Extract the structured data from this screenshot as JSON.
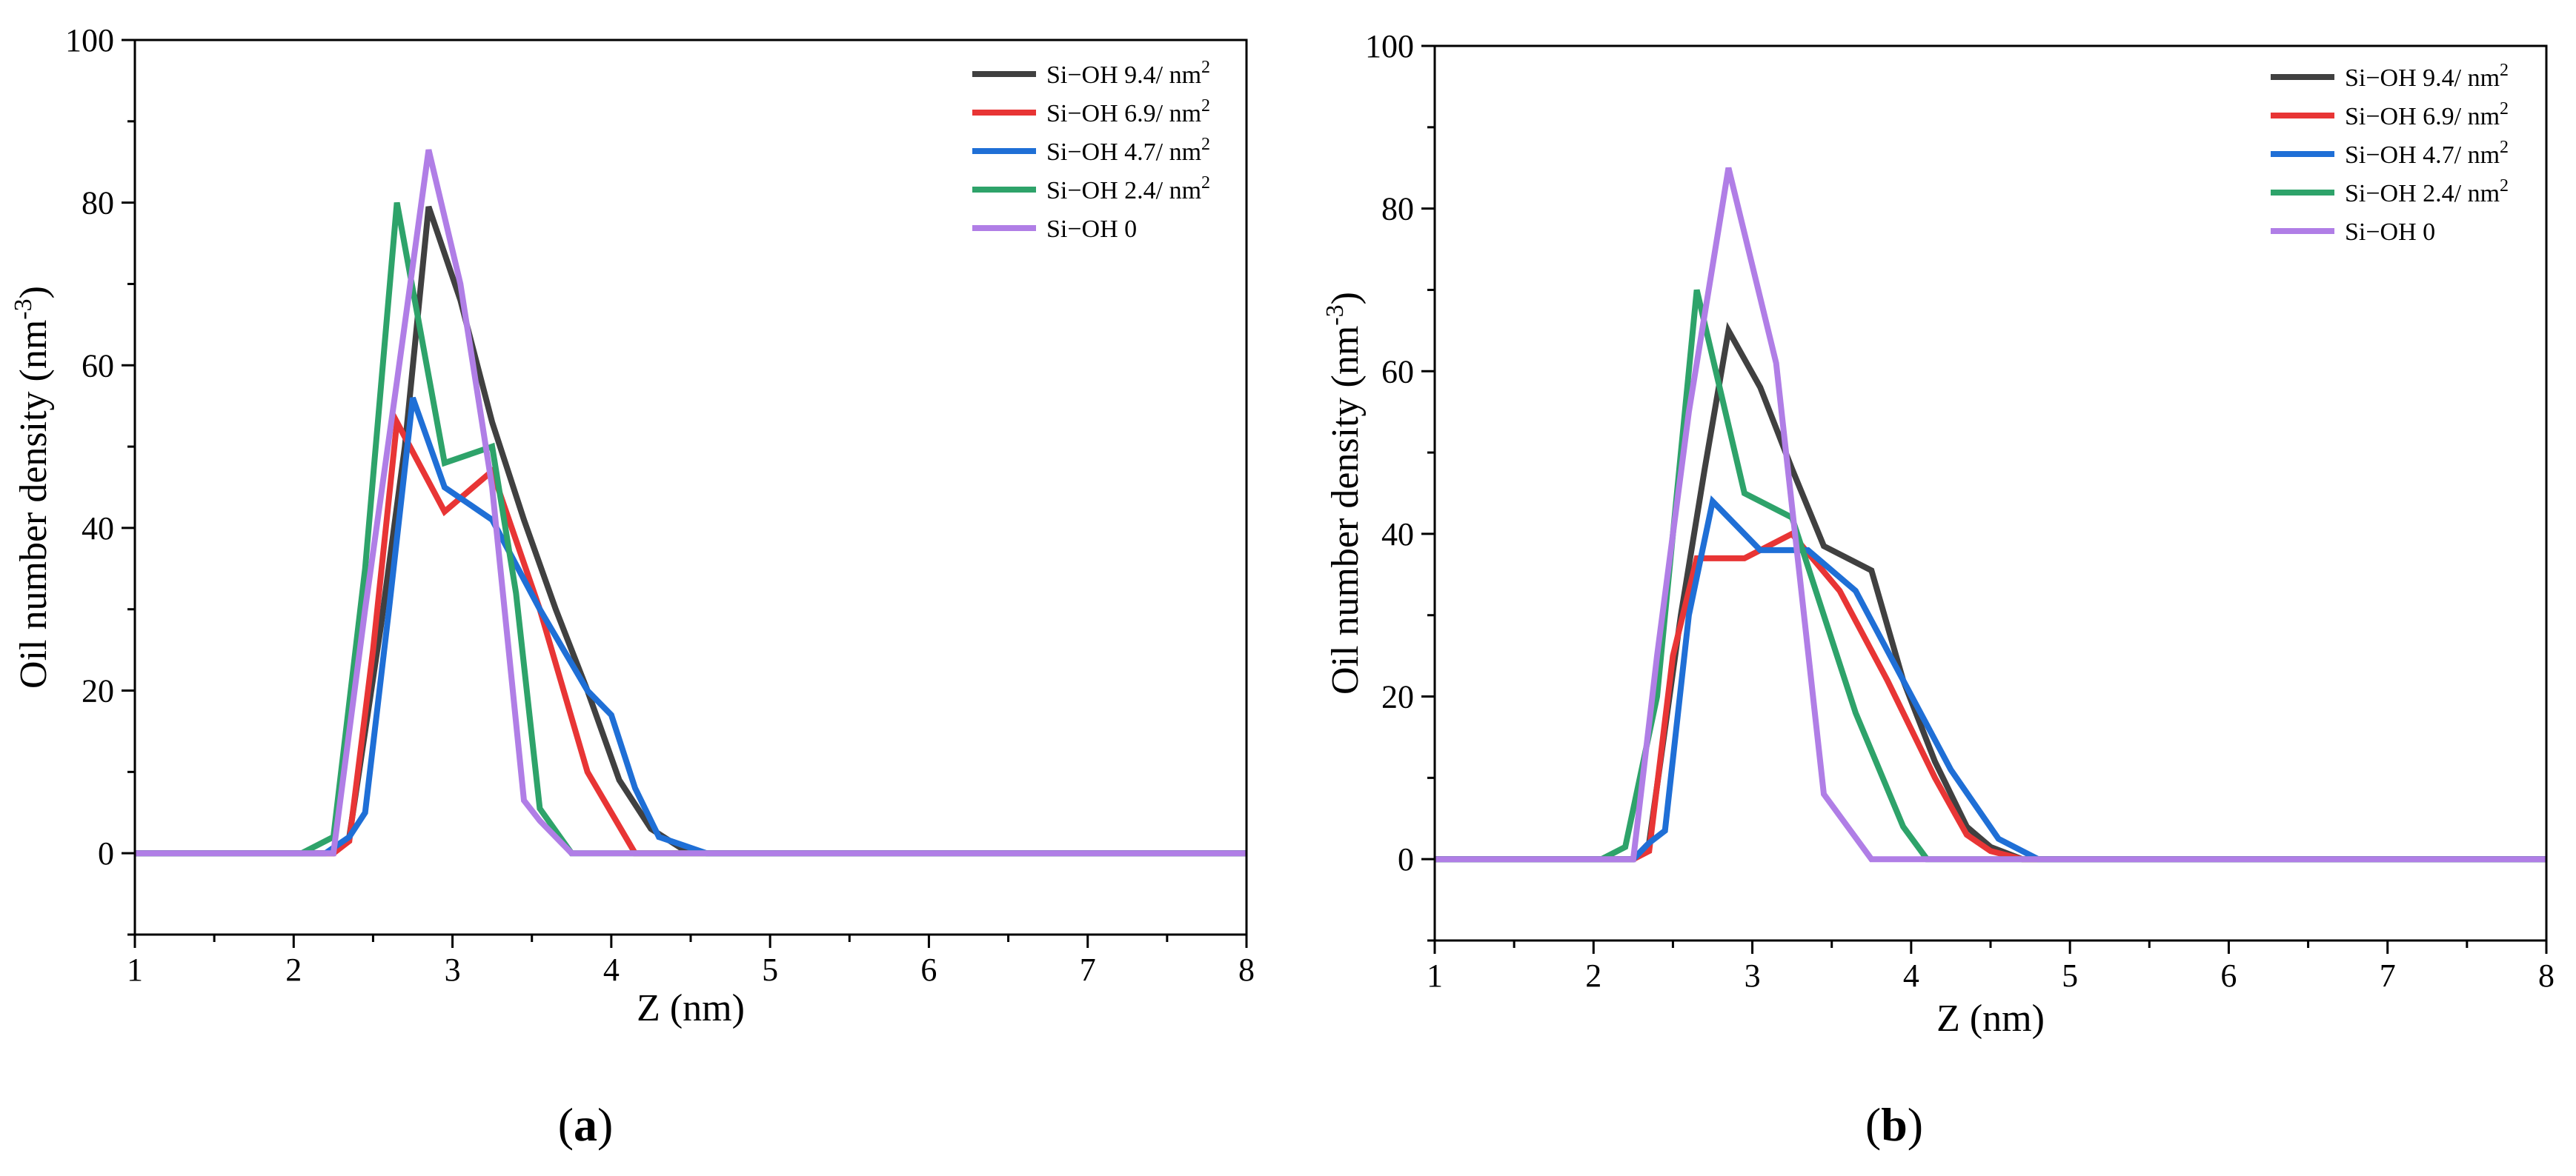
{
  "figure_panels": [
    {
      "id": "a",
      "label_open": "(",
      "label_letter": "a",
      "label_close": ")"
    },
    {
      "id": "b",
      "label_open": "(",
      "label_letter": "b",
      "label_close": ")"
    }
  ],
  "chart_data": [
    {
      "type": "line",
      "panel": "a",
      "title": "",
      "xlabel": "Z (nm)",
      "ylabel": "Oil number density (nm",
      "ylabel_sup": "-3",
      "ylabel_suffix": ")",
      "xlim": [
        1,
        8
      ],
      "ylim": [
        -10,
        100
      ],
      "xticks": [
        1,
        2,
        3,
        4,
        5,
        6,
        7,
        8
      ],
      "yticks": [
        0,
        20,
        40,
        60,
        80,
        100
      ],
      "legend_position": "top-right",
      "series": [
        {
          "name": "Si-OH 9.4/ nm",
          "name_sup": "2",
          "color": "#404040",
          "x": [
            1,
            2.25,
            2.35,
            2.55,
            2.7,
            2.85,
            3.05,
            3.25,
            3.45,
            3.65,
            3.85,
            4.05,
            4.25,
            4.45,
            4.6,
            8
          ],
          "y": [
            0,
            0,
            2,
            28,
            50,
            79.5,
            68,
            53,
            41,
            30,
            20,
            9,
            3,
            0.5,
            0,
            0
          ]
        },
        {
          "name": "Si-OH 6.9/ nm",
          "name_sup": "2",
          "color": "#e83535",
          "x": [
            1,
            2.25,
            2.35,
            2.5,
            2.65,
            2.95,
            3.25,
            3.55,
            3.85,
            4.0,
            4.15,
            8
          ],
          "y": [
            0,
            0,
            1.5,
            25,
            53,
            42,
            47,
            30,
            10,
            5,
            0,
            0
          ]
        },
        {
          "name": "Si-OH 4.7/ nm",
          "name_sup": "2",
          "color": "#1f6fd6",
          "x": [
            1,
            2.2,
            2.35,
            2.45,
            2.6,
            2.75,
            2.95,
            3.25,
            3.55,
            3.85,
            4.0,
            4.15,
            4.3,
            4.45,
            4.6,
            8
          ],
          "y": [
            0,
            0,
            2,
            5,
            30,
            56,
            45,
            41,
            30,
            20,
            17,
            8,
            2,
            1,
            0,
            0
          ]
        },
        {
          "name": "Si-OH 2.4/ nm",
          "name_sup": "2",
          "color": "#2ea36a",
          "x": [
            1,
            2.05,
            2.25,
            2.45,
            2.65,
            2.95,
            3.25,
            3.4,
            3.55,
            3.75,
            8
          ],
          "y": [
            0,
            0,
            2,
            35,
            80,
            48,
            50,
            32,
            5.5,
            0,
            0
          ]
        },
        {
          "name": "Si-OH 0",
          "name_sup": "",
          "color": "#b07ee6",
          "x": [
            1,
            2.25,
            2.45,
            2.65,
            2.85,
            3.05,
            3.25,
            3.45,
            3.55,
            3.75,
            8
          ],
          "y": [
            0,
            0,
            30,
            58,
            86.5,
            70,
            45,
            6.5,
            4,
            0,
            0
          ]
        }
      ]
    },
    {
      "type": "line",
      "panel": "b",
      "title": "",
      "xlabel": "Z (nm)",
      "ylabel": "Oil number density (nm",
      "ylabel_sup": "-3",
      "ylabel_suffix": ")",
      "xlim": [
        1,
        8
      ],
      "ylim": [
        -10,
        100
      ],
      "xticks": [
        1,
        2,
        3,
        4,
        5,
        6,
        7,
        8
      ],
      "yticks": [
        0,
        20,
        40,
        60,
        80,
        100
      ],
      "legend_position": "top-right",
      "series": [
        {
          "name": "Si-OH 9.4/ nm",
          "name_sup": "2",
          "color": "#404040",
          "x": [
            1,
            2.25,
            2.35,
            2.55,
            2.7,
            2.85,
            3.05,
            3.25,
            3.45,
            3.75,
            3.95,
            4.15,
            4.35,
            4.5,
            4.7,
            8
          ],
          "y": [
            0,
            0,
            2,
            30,
            48,
            65,
            58,
            48,
            38.5,
            35.5,
            22,
            12,
            4,
            1.5,
            0,
            0
          ]
        },
        {
          "name": "Si-OH 6.9/ nm",
          "name_sup": "2",
          "color": "#e83535",
          "x": [
            1,
            2.25,
            2.35,
            2.5,
            2.65,
            2.95,
            3.25,
            3.55,
            3.85,
            4.15,
            4.35,
            4.5,
            4.7,
            8
          ],
          "y": [
            0,
            0,
            1,
            25,
            37,
            37,
            40,
            33,
            22,
            10,
            3,
            1,
            0,
            0
          ]
        },
        {
          "name": "Si-OH 4.7/ nm",
          "name_sup": "2",
          "color": "#1f6fd6",
          "x": [
            1,
            2.25,
            2.35,
            2.45,
            2.6,
            2.75,
            3.05,
            3.35,
            3.65,
            3.95,
            4.25,
            4.55,
            4.8,
            8
          ],
          "y": [
            0,
            0,
            2,
            3.5,
            30,
            44,
            38,
            38,
            33,
            22,
            11,
            2.5,
            0,
            0
          ]
        },
        {
          "name": "Si-OH 2.4/ nm",
          "name_sup": "2",
          "color": "#2ea36a",
          "x": [
            1,
            2.05,
            2.2,
            2.4,
            2.65,
            2.95,
            3.25,
            3.45,
            3.65,
            3.95,
            4.1,
            8
          ],
          "y": [
            0,
            0,
            1.5,
            20,
            70,
            45,
            42,
            30,
            18,
            4,
            0,
            0
          ]
        },
        {
          "name": "Si-OH 0",
          "name_sup": "",
          "color": "#b07ee6",
          "x": [
            1,
            2.25,
            2.4,
            2.6,
            2.85,
            3.15,
            3.45,
            3.75,
            8
          ],
          "y": [
            0,
            0,
            25,
            55,
            85,
            61,
            8,
            0,
            0
          ]
        }
      ]
    }
  ]
}
